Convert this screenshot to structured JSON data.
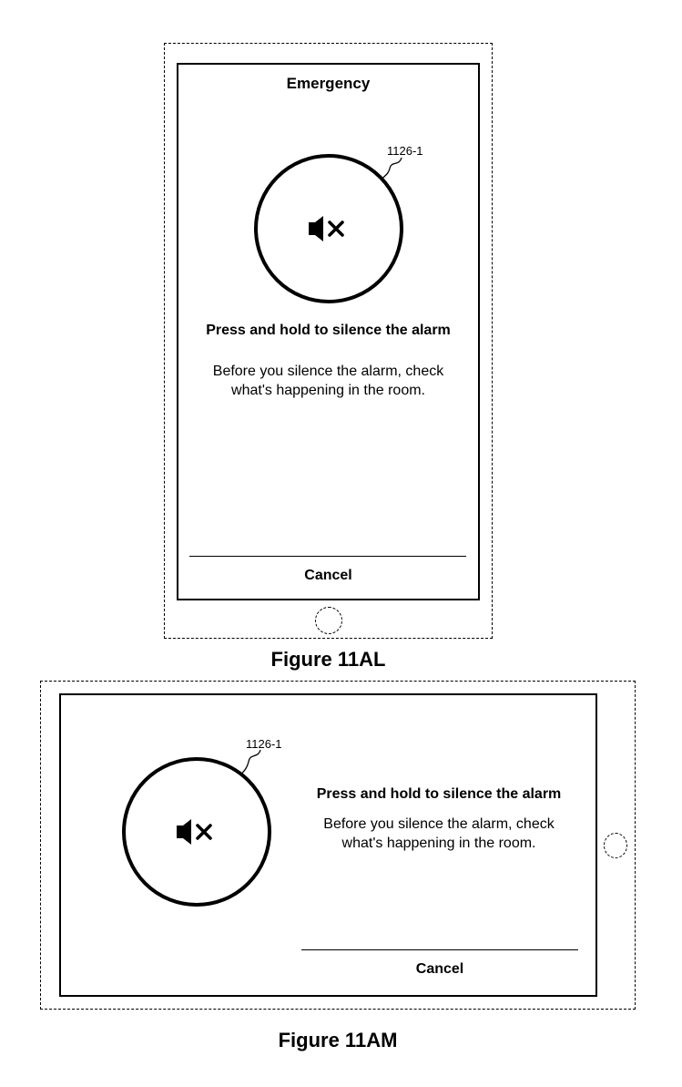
{
  "figure_11al": {
    "label": "Figure 11AL",
    "screen_title": "Emergency",
    "ref_label": "1126-1",
    "silence_button_icon": "speaker-mute-icon",
    "heading": "Press and hold to silence the alarm",
    "body_line1": "Before you silence the alarm, check",
    "body_line2": "what's happening in the room.",
    "cancel_label": "Cancel"
  },
  "figure_11am": {
    "label": "Figure 11AM",
    "ref_label": "1126-1",
    "silence_button_icon": "speaker-mute-icon",
    "heading": "Press and hold to silence the alarm",
    "body_line1": "Before you silence the alarm, check",
    "body_line2": "what's happening in the room.",
    "cancel_label": "Cancel"
  }
}
